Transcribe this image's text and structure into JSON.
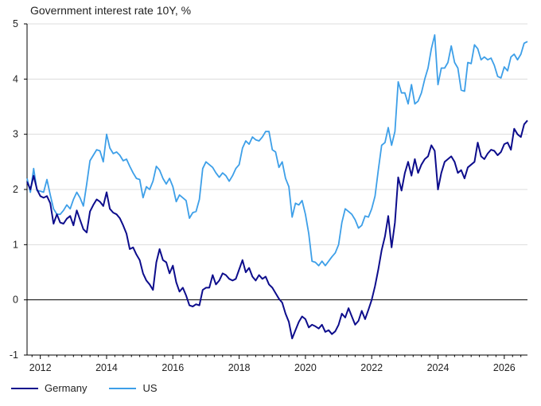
{
  "chart_data": {
    "type": "line",
    "title": "Government interest rate 10Y, %",
    "xlabel": "",
    "ylabel": "",
    "xlim": [
      2011.6,
      2026.7
    ],
    "ylim": [
      -1,
      5
    ],
    "x_ticks": [
      2012,
      2014,
      2016,
      2018,
      2020,
      2022,
      2024,
      2026
    ],
    "y_ticks": [
      -1,
      0,
      1,
      2,
      3,
      4,
      5
    ],
    "grid": true,
    "legend_position": "bottom-left",
    "series": [
      {
        "name": "Germany",
        "color": "#0d0d8c",
        "points": [
          [
            2011.6,
            2.14
          ],
          [
            2011.7,
            2.0
          ],
          [
            2011.8,
            2.25
          ],
          [
            2011.9,
            2.0
          ],
          [
            2012.0,
            1.88
          ],
          [
            2012.1,
            1.85
          ],
          [
            2012.2,
            1.88
          ],
          [
            2012.3,
            1.75
          ],
          [
            2012.4,
            1.38
          ],
          [
            2012.5,
            1.55
          ],
          [
            2012.6,
            1.4
          ],
          [
            2012.7,
            1.38
          ],
          [
            2012.8,
            1.47
          ],
          [
            2012.9,
            1.52
          ],
          [
            2013.0,
            1.35
          ],
          [
            2013.1,
            1.62
          ],
          [
            2013.2,
            1.45
          ],
          [
            2013.3,
            1.28
          ],
          [
            2013.4,
            1.22
          ],
          [
            2013.5,
            1.6
          ],
          [
            2013.6,
            1.72
          ],
          [
            2013.7,
            1.82
          ],
          [
            2013.8,
            1.78
          ],
          [
            2013.9,
            1.7
          ],
          [
            2014.0,
            1.95
          ],
          [
            2014.1,
            1.65
          ],
          [
            2014.2,
            1.58
          ],
          [
            2014.3,
            1.55
          ],
          [
            2014.4,
            1.48
          ],
          [
            2014.5,
            1.35
          ],
          [
            2014.6,
            1.2
          ],
          [
            2014.7,
            0.92
          ],
          [
            2014.8,
            0.95
          ],
          [
            2014.9,
            0.82
          ],
          [
            2015.0,
            0.72
          ],
          [
            2015.1,
            0.48
          ],
          [
            2015.2,
            0.35
          ],
          [
            2015.3,
            0.28
          ],
          [
            2015.4,
            0.18
          ],
          [
            2015.5,
            0.68
          ],
          [
            2015.6,
            0.92
          ],
          [
            2015.7,
            0.72
          ],
          [
            2015.8,
            0.68
          ],
          [
            2015.9,
            0.48
          ],
          [
            2016.0,
            0.62
          ],
          [
            2016.1,
            0.32
          ],
          [
            2016.2,
            0.15
          ],
          [
            2016.3,
            0.22
          ],
          [
            2016.4,
            0.08
          ],
          [
            2016.5,
            -0.1
          ],
          [
            2016.6,
            -0.12
          ],
          [
            2016.7,
            -0.08
          ],
          [
            2016.8,
            -0.1
          ],
          [
            2016.9,
            0.18
          ],
          [
            2017.0,
            0.22
          ],
          [
            2017.1,
            0.22
          ],
          [
            2017.2,
            0.45
          ],
          [
            2017.3,
            0.28
          ],
          [
            2017.4,
            0.35
          ],
          [
            2017.5,
            0.48
          ],
          [
            2017.6,
            0.45
          ],
          [
            2017.7,
            0.38
          ],
          [
            2017.8,
            0.35
          ],
          [
            2017.9,
            0.38
          ],
          [
            2018.0,
            0.55
          ],
          [
            2018.1,
            0.72
          ],
          [
            2018.2,
            0.5
          ],
          [
            2018.3,
            0.58
          ],
          [
            2018.4,
            0.42
          ],
          [
            2018.5,
            0.35
          ],
          [
            2018.6,
            0.45
          ],
          [
            2018.7,
            0.38
          ],
          [
            2018.8,
            0.42
          ],
          [
            2018.9,
            0.28
          ],
          [
            2019.0,
            0.22
          ],
          [
            2019.1,
            0.12
          ],
          [
            2019.2,
            0.02
          ],
          [
            2019.3,
            -0.05
          ],
          [
            2019.4,
            -0.25
          ],
          [
            2019.5,
            -0.4
          ],
          [
            2019.6,
            -0.7
          ],
          [
            2019.7,
            -0.55
          ],
          [
            2019.8,
            -0.4
          ],
          [
            2019.9,
            -0.3
          ],
          [
            2020.0,
            -0.35
          ],
          [
            2020.1,
            -0.5
          ],
          [
            2020.2,
            -0.45
          ],
          [
            2020.3,
            -0.48
          ],
          [
            2020.4,
            -0.52
          ],
          [
            2020.5,
            -0.45
          ],
          [
            2020.6,
            -0.58
          ],
          [
            2020.7,
            -0.55
          ],
          [
            2020.8,
            -0.62
          ],
          [
            2020.9,
            -0.57
          ],
          [
            2021.0,
            -0.45
          ],
          [
            2021.1,
            -0.25
          ],
          [
            2021.2,
            -0.32
          ],
          [
            2021.3,
            -0.15
          ],
          [
            2021.4,
            -0.3
          ],
          [
            2021.5,
            -0.45
          ],
          [
            2021.6,
            -0.38
          ],
          [
            2021.7,
            -0.2
          ],
          [
            2021.8,
            -0.35
          ],
          [
            2021.9,
            -0.18
          ],
          [
            2022.0,
            0.0
          ],
          [
            2022.1,
            0.25
          ],
          [
            2022.2,
            0.55
          ],
          [
            2022.3,
            0.9
          ],
          [
            2022.4,
            1.15
          ],
          [
            2022.5,
            1.52
          ],
          [
            2022.6,
            0.95
          ],
          [
            2022.7,
            1.4
          ],
          [
            2022.8,
            2.22
          ],
          [
            2022.9,
            1.98
          ],
          [
            2023.0,
            2.3
          ],
          [
            2023.1,
            2.5
          ],
          [
            2023.2,
            2.25
          ],
          [
            2023.3,
            2.55
          ],
          [
            2023.4,
            2.3
          ],
          [
            2023.5,
            2.45
          ],
          [
            2023.6,
            2.55
          ],
          [
            2023.7,
            2.6
          ],
          [
            2023.8,
            2.8
          ],
          [
            2023.9,
            2.7
          ],
          [
            2024.0,
            2.0
          ],
          [
            2024.1,
            2.3
          ],
          [
            2024.2,
            2.5
          ],
          [
            2024.3,
            2.55
          ],
          [
            2024.4,
            2.6
          ],
          [
            2024.5,
            2.5
          ],
          [
            2024.6,
            2.3
          ],
          [
            2024.7,
            2.35
          ],
          [
            2024.8,
            2.2
          ],
          [
            2024.9,
            2.4
          ],
          [
            2025.0,
            2.45
          ],
          [
            2025.1,
            2.5
          ],
          [
            2025.2,
            2.85
          ],
          [
            2025.3,
            2.6
          ],
          [
            2025.4,
            2.55
          ],
          [
            2025.5,
            2.65
          ],
          [
            2025.6,
            2.72
          ],
          [
            2025.7,
            2.7
          ],
          [
            2025.8,
            2.62
          ],
          [
            2025.9,
            2.68
          ],
          [
            2026.0,
            2.82
          ],
          [
            2026.1,
            2.85
          ],
          [
            2026.2,
            2.72
          ],
          [
            2026.3,
            3.1
          ],
          [
            2026.4,
            3.0
          ],
          [
            2026.5,
            2.95
          ],
          [
            2026.6,
            3.18
          ],
          [
            2026.7,
            3.25
          ]
        ]
      },
      {
        "name": "US",
        "color": "#3d9fe8",
        "points": [
          [
            2011.6,
            2.2
          ],
          [
            2011.7,
            1.95
          ],
          [
            2011.8,
            2.38
          ],
          [
            2011.9,
            1.98
          ],
          [
            2012.0,
            1.97
          ],
          [
            2012.1,
            1.95
          ],
          [
            2012.2,
            2.18
          ],
          [
            2012.3,
            1.9
          ],
          [
            2012.4,
            1.65
          ],
          [
            2012.5,
            1.55
          ],
          [
            2012.6,
            1.55
          ],
          [
            2012.7,
            1.62
          ],
          [
            2012.8,
            1.72
          ],
          [
            2012.9,
            1.65
          ],
          [
            2013.0,
            1.82
          ],
          [
            2013.1,
            1.95
          ],
          [
            2013.2,
            1.85
          ],
          [
            2013.3,
            1.7
          ],
          [
            2013.4,
            2.1
          ],
          [
            2013.5,
            2.52
          ],
          [
            2013.6,
            2.62
          ],
          [
            2013.7,
            2.72
          ],
          [
            2013.8,
            2.7
          ],
          [
            2013.9,
            2.5
          ],
          [
            2014.0,
            3.0
          ],
          [
            2014.1,
            2.75
          ],
          [
            2014.2,
            2.65
          ],
          [
            2014.3,
            2.68
          ],
          [
            2014.4,
            2.62
          ],
          [
            2014.5,
            2.52
          ],
          [
            2014.6,
            2.55
          ],
          [
            2014.7,
            2.42
          ],
          [
            2014.8,
            2.3
          ],
          [
            2014.9,
            2.2
          ],
          [
            2015.0,
            2.18
          ],
          [
            2015.1,
            1.85
          ],
          [
            2015.2,
            2.05
          ],
          [
            2015.3,
            2.0
          ],
          [
            2015.4,
            2.15
          ],
          [
            2015.5,
            2.42
          ],
          [
            2015.6,
            2.35
          ],
          [
            2015.7,
            2.2
          ],
          [
            2015.8,
            2.1
          ],
          [
            2015.9,
            2.2
          ],
          [
            2016.0,
            2.05
          ],
          [
            2016.1,
            1.78
          ],
          [
            2016.2,
            1.9
          ],
          [
            2016.3,
            1.85
          ],
          [
            2016.4,
            1.8
          ],
          [
            2016.5,
            1.48
          ],
          [
            2016.6,
            1.58
          ],
          [
            2016.7,
            1.6
          ],
          [
            2016.8,
            1.82
          ],
          [
            2016.9,
            2.38
          ],
          [
            2017.0,
            2.5
          ],
          [
            2017.1,
            2.45
          ],
          [
            2017.2,
            2.4
          ],
          [
            2017.3,
            2.3
          ],
          [
            2017.4,
            2.22
          ],
          [
            2017.5,
            2.3
          ],
          [
            2017.6,
            2.25
          ],
          [
            2017.7,
            2.15
          ],
          [
            2017.8,
            2.25
          ],
          [
            2017.9,
            2.38
          ],
          [
            2018.0,
            2.45
          ],
          [
            2018.1,
            2.75
          ],
          [
            2018.2,
            2.88
          ],
          [
            2018.3,
            2.82
          ],
          [
            2018.4,
            2.95
          ],
          [
            2018.5,
            2.9
          ],
          [
            2018.6,
            2.88
          ],
          [
            2018.7,
            2.95
          ],
          [
            2018.8,
            3.05
          ],
          [
            2018.9,
            3.05
          ],
          [
            2019.0,
            2.72
          ],
          [
            2019.1,
            2.68
          ],
          [
            2019.2,
            2.4
          ],
          [
            2019.3,
            2.5
          ],
          [
            2019.4,
            2.2
          ],
          [
            2019.5,
            2.05
          ],
          [
            2019.6,
            1.5
          ],
          [
            2019.7,
            1.75
          ],
          [
            2019.8,
            1.72
          ],
          [
            2019.9,
            1.8
          ],
          [
            2020.0,
            1.55
          ],
          [
            2020.1,
            1.2
          ],
          [
            2020.2,
            0.7
          ],
          [
            2020.3,
            0.68
          ],
          [
            2020.4,
            0.62
          ],
          [
            2020.5,
            0.7
          ],
          [
            2020.6,
            0.62
          ],
          [
            2020.7,
            0.7
          ],
          [
            2020.8,
            0.78
          ],
          [
            2020.9,
            0.85
          ],
          [
            2021.0,
            1.0
          ],
          [
            2021.1,
            1.4
          ],
          [
            2021.2,
            1.65
          ],
          [
            2021.3,
            1.6
          ],
          [
            2021.4,
            1.55
          ],
          [
            2021.5,
            1.45
          ],
          [
            2021.6,
            1.3
          ],
          [
            2021.7,
            1.35
          ],
          [
            2021.8,
            1.52
          ],
          [
            2021.9,
            1.5
          ],
          [
            2022.0,
            1.65
          ],
          [
            2022.1,
            1.88
          ],
          [
            2022.2,
            2.35
          ],
          [
            2022.3,
            2.8
          ],
          [
            2022.4,
            2.85
          ],
          [
            2022.5,
            3.12
          ],
          [
            2022.6,
            2.8
          ],
          [
            2022.7,
            3.05
          ],
          [
            2022.8,
            3.95
          ],
          [
            2022.9,
            3.75
          ],
          [
            2023.0,
            3.75
          ],
          [
            2023.1,
            3.55
          ],
          [
            2023.2,
            3.9
          ],
          [
            2023.3,
            3.55
          ],
          [
            2023.4,
            3.6
          ],
          [
            2023.5,
            3.75
          ],
          [
            2023.6,
            4.0
          ],
          [
            2023.7,
            4.2
          ],
          [
            2023.8,
            4.55
          ],
          [
            2023.9,
            4.8
          ],
          [
            2024.0,
            3.9
          ],
          [
            2024.1,
            4.2
          ],
          [
            2024.2,
            4.2
          ],
          [
            2024.3,
            4.3
          ],
          [
            2024.4,
            4.6
          ],
          [
            2024.5,
            4.3
          ],
          [
            2024.6,
            4.2
          ],
          [
            2024.7,
            3.8
          ],
          [
            2024.8,
            3.78
          ],
          [
            2024.9,
            4.3
          ],
          [
            2025.0,
            4.28
          ],
          [
            2025.1,
            4.62
          ],
          [
            2025.2,
            4.55
          ],
          [
            2025.3,
            4.35
          ],
          [
            2025.4,
            4.4
          ],
          [
            2025.5,
            4.35
          ],
          [
            2025.6,
            4.38
          ],
          [
            2025.7,
            4.25
          ],
          [
            2025.8,
            4.05
          ],
          [
            2025.9,
            4.02
          ],
          [
            2026.0,
            4.22
          ],
          [
            2026.1,
            4.15
          ],
          [
            2026.2,
            4.4
          ],
          [
            2026.3,
            4.45
          ],
          [
            2026.4,
            4.35
          ],
          [
            2026.5,
            4.45
          ],
          [
            2026.6,
            4.65
          ],
          [
            2026.7,
            4.68
          ]
        ]
      }
    ]
  }
}
